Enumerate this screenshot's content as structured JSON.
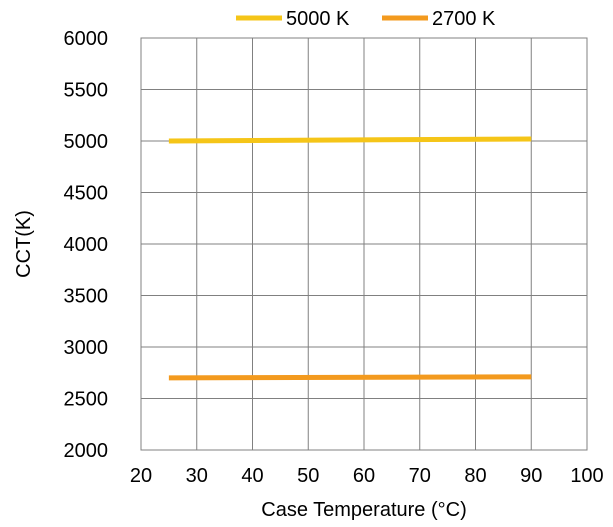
{
  "chart_data": {
    "type": "line",
    "title": "",
    "xlabel": "Case Temperature (°C)",
    "ylabel": "CCT(K)",
    "xlim": [
      20,
      100
    ],
    "ylim": [
      2000,
      6000
    ],
    "x_ticks": [
      "20",
      "30",
      "40",
      "50",
      "60",
      "70",
      "80",
      "90",
      "100"
    ],
    "y_ticks": [
      "2000",
      "2500",
      "3000",
      "3500",
      "4000",
      "4500",
      "5000",
      "5500",
      "6000"
    ],
    "grid": true,
    "legend_position": "top",
    "series": [
      {
        "name": "5000 K",
        "color": "#F5C518",
        "x": [
          25,
          90
        ],
        "y": [
          5000,
          5020
        ]
      },
      {
        "name": "2700 K",
        "color": "#F39A1E",
        "x": [
          25,
          90
        ],
        "y": [
          2700,
          2710
        ]
      }
    ]
  }
}
